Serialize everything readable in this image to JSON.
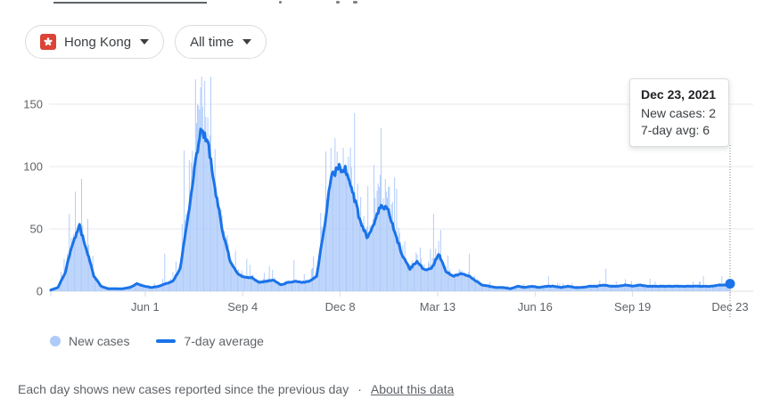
{
  "filters": {
    "region": {
      "label": "Hong Kong",
      "flag_color": "#db4437"
    },
    "time_range": {
      "label": "All time"
    }
  },
  "tooltip": {
    "date": "Dec 23, 2021",
    "new_cases_line": "New cases: 2",
    "avg_line": "7-day avg: 6"
  },
  "legend": {
    "new_cases_label": "New cases",
    "avg_label": "7-day average"
  },
  "footer": {
    "text": "Each day shows new cases reported since the previous day",
    "separator": "·",
    "link": "About this data"
  },
  "colors": {
    "bar": "#aecbfa",
    "line": "#1a73e8",
    "grid": "#e8eaed",
    "baseline": "#dadce0",
    "axis_text": "#5f6368",
    "dotted_guide": "#80868b"
  },
  "chart_data": {
    "type": "area",
    "title": "New COVID-19 cases, Hong Kong, all time",
    "xlabel": "",
    "ylabel": "",
    "ylim": [
      0,
      175
    ],
    "y_ticks": [
      0,
      50,
      100,
      150
    ],
    "x_ticks": [
      {
        "label": "Jun 1",
        "date": "2020-06-01"
      },
      {
        "label": "Sep 4",
        "date": "2020-09-04"
      },
      {
        "label": "Dec 8",
        "date": "2020-12-08"
      },
      {
        "label": "Mar 13",
        "date": "2021-03-13"
      },
      {
        "label": "Jun 16",
        "date": "2021-06-16"
      },
      {
        "label": "Sep 19",
        "date": "2021-09-19"
      },
      {
        "label": "Dec 23",
        "date": "2021-12-23"
      }
    ],
    "date_range": [
      "2020-03-01",
      "2021-12-23"
    ],
    "legend_position": "bottom-left",
    "grid": true,
    "series": [
      {
        "name": "7-day average",
        "type": "line",
        "color": "#1a73e8",
        "points": [
          [
            "2020-03-01",
            1
          ],
          [
            "2020-03-08",
            3
          ],
          [
            "2020-03-15",
            15
          ],
          [
            "2020-03-22",
            38
          ],
          [
            "2020-03-29",
            52
          ],
          [
            "2020-04-05",
            33
          ],
          [
            "2020-04-12",
            12
          ],
          [
            "2020-04-19",
            4
          ],
          [
            "2020-04-26",
            2
          ],
          [
            "2020-05-03",
            2
          ],
          [
            "2020-05-10",
            2
          ],
          [
            "2020-05-17",
            3
          ],
          [
            "2020-05-24",
            6
          ],
          [
            "2020-05-31",
            4
          ],
          [
            "2020-06-07",
            3
          ],
          [
            "2020-06-14",
            4
          ],
          [
            "2020-06-21",
            6
          ],
          [
            "2020-06-28",
            8
          ],
          [
            "2020-07-05",
            18
          ],
          [
            "2020-07-12",
            55
          ],
          [
            "2020-07-19",
            100
          ],
          [
            "2020-07-26",
            130
          ],
          [
            "2020-08-02",
            115
          ],
          [
            "2020-08-09",
            78
          ],
          [
            "2020-08-16",
            45
          ],
          [
            "2020-08-23",
            24
          ],
          [
            "2020-08-30",
            14
          ],
          [
            "2020-09-06",
            11
          ],
          [
            "2020-09-13",
            11
          ],
          [
            "2020-09-20",
            7
          ],
          [
            "2020-09-27",
            8
          ],
          [
            "2020-10-04",
            9
          ],
          [
            "2020-10-11",
            5
          ],
          [
            "2020-10-18",
            7
          ],
          [
            "2020-10-25",
            8
          ],
          [
            "2020-11-01",
            7
          ],
          [
            "2020-11-08",
            8
          ],
          [
            "2020-11-15",
            12
          ],
          [
            "2020-11-22",
            48
          ],
          [
            "2020-11-29",
            90
          ],
          [
            "2020-12-06",
            100
          ],
          [
            "2020-12-13",
            97
          ],
          [
            "2020-12-20",
            80
          ],
          [
            "2020-12-27",
            58
          ],
          [
            "2021-01-03",
            43
          ],
          [
            "2021-01-10",
            53
          ],
          [
            "2021-01-17",
            70
          ],
          [
            "2021-01-24",
            65
          ],
          [
            "2021-01-31",
            45
          ],
          [
            "2021-02-07",
            28
          ],
          [
            "2021-02-14",
            18
          ],
          [
            "2021-02-21",
            24
          ],
          [
            "2021-02-28",
            17
          ],
          [
            "2021-03-07",
            18
          ],
          [
            "2021-03-14",
            30
          ],
          [
            "2021-03-21",
            16
          ],
          [
            "2021-03-28",
            12
          ],
          [
            "2021-04-04",
            14
          ],
          [
            "2021-04-11",
            13
          ],
          [
            "2021-04-18",
            9
          ],
          [
            "2021-04-25",
            5
          ],
          [
            "2021-05-02",
            4
          ],
          [
            "2021-05-09",
            3
          ],
          [
            "2021-05-16",
            3
          ],
          [
            "2021-05-23",
            2
          ],
          [
            "2021-05-30",
            4
          ],
          [
            "2021-06-06",
            3
          ],
          [
            "2021-06-13",
            4
          ],
          [
            "2021-06-20",
            3
          ],
          [
            "2021-06-27",
            4
          ],
          [
            "2021-07-04",
            4
          ],
          [
            "2021-07-11",
            3
          ],
          [
            "2021-07-18",
            4
          ],
          [
            "2021-07-25",
            3
          ],
          [
            "2021-08-01",
            3
          ],
          [
            "2021-08-08",
            4
          ],
          [
            "2021-08-15",
            4
          ],
          [
            "2021-08-22",
            5
          ],
          [
            "2021-08-29",
            4
          ],
          [
            "2021-09-05",
            4
          ],
          [
            "2021-09-12",
            5
          ],
          [
            "2021-09-19",
            4
          ],
          [
            "2021-09-26",
            5
          ],
          [
            "2021-10-03",
            4
          ],
          [
            "2021-10-10",
            4
          ],
          [
            "2021-10-17",
            4
          ],
          [
            "2021-10-24",
            4
          ],
          [
            "2021-10-31",
            4
          ],
          [
            "2021-11-07",
            4
          ],
          [
            "2021-11-14",
            4
          ],
          [
            "2021-11-21",
            4
          ],
          [
            "2021-11-28",
            4
          ],
          [
            "2021-12-05",
            4
          ],
          [
            "2021-12-12",
            5
          ],
          [
            "2021-12-19",
            5
          ],
          [
            "2021-12-23",
            6
          ]
        ]
      },
      {
        "name": "New cases",
        "type": "bar",
        "color": "#aecbfa",
        "spikes": [
          [
            "2020-03-19",
            62
          ],
          [
            "2020-03-25",
            80
          ],
          [
            "2020-06-20",
            30
          ],
          [
            "2020-07-09",
            113
          ],
          [
            "2020-07-14",
            105
          ],
          [
            "2020-07-20",
            170
          ],
          [
            "2020-07-23",
            149
          ],
          [
            "2020-07-27",
            148
          ],
          [
            "2020-07-30",
            140
          ],
          [
            "2020-08-03",
            125
          ],
          [
            "2020-08-20",
            45
          ],
          [
            "2020-08-26",
            22
          ],
          [
            "2020-09-08",
            26
          ],
          [
            "2020-09-30",
            20
          ],
          [
            "2020-10-24",
            25
          ],
          [
            "2020-11-12",
            28
          ],
          [
            "2020-11-24",
            112
          ],
          [
            "2020-11-29",
            115
          ],
          [
            "2020-12-05",
            112
          ],
          [
            "2020-12-11",
            115
          ],
          [
            "2020-12-16",
            108
          ],
          [
            "2020-12-31",
            60
          ],
          [
            "2021-01-11",
            75
          ],
          [
            "2021-01-17",
            131
          ],
          [
            "2021-01-21",
            90
          ],
          [
            "2021-02-09",
            40
          ],
          [
            "2021-02-24",
            35
          ],
          [
            "2021-03-09",
            62
          ],
          [
            "2021-04-13",
            30
          ],
          [
            "2021-06-29",
            12
          ],
          [
            "2021-08-24",
            18
          ],
          [
            "2021-10-06",
            10
          ],
          [
            "2021-11-27",
            12
          ],
          [
            "2021-12-15",
            12
          ],
          [
            "2021-12-23",
            2
          ]
        ]
      }
    ],
    "end_marker": {
      "date": "2021-12-23",
      "value": 6
    },
    "annotation": {
      "date": "Dec 23, 2021",
      "new_cases": 2,
      "seven_day_avg": 6
    }
  }
}
